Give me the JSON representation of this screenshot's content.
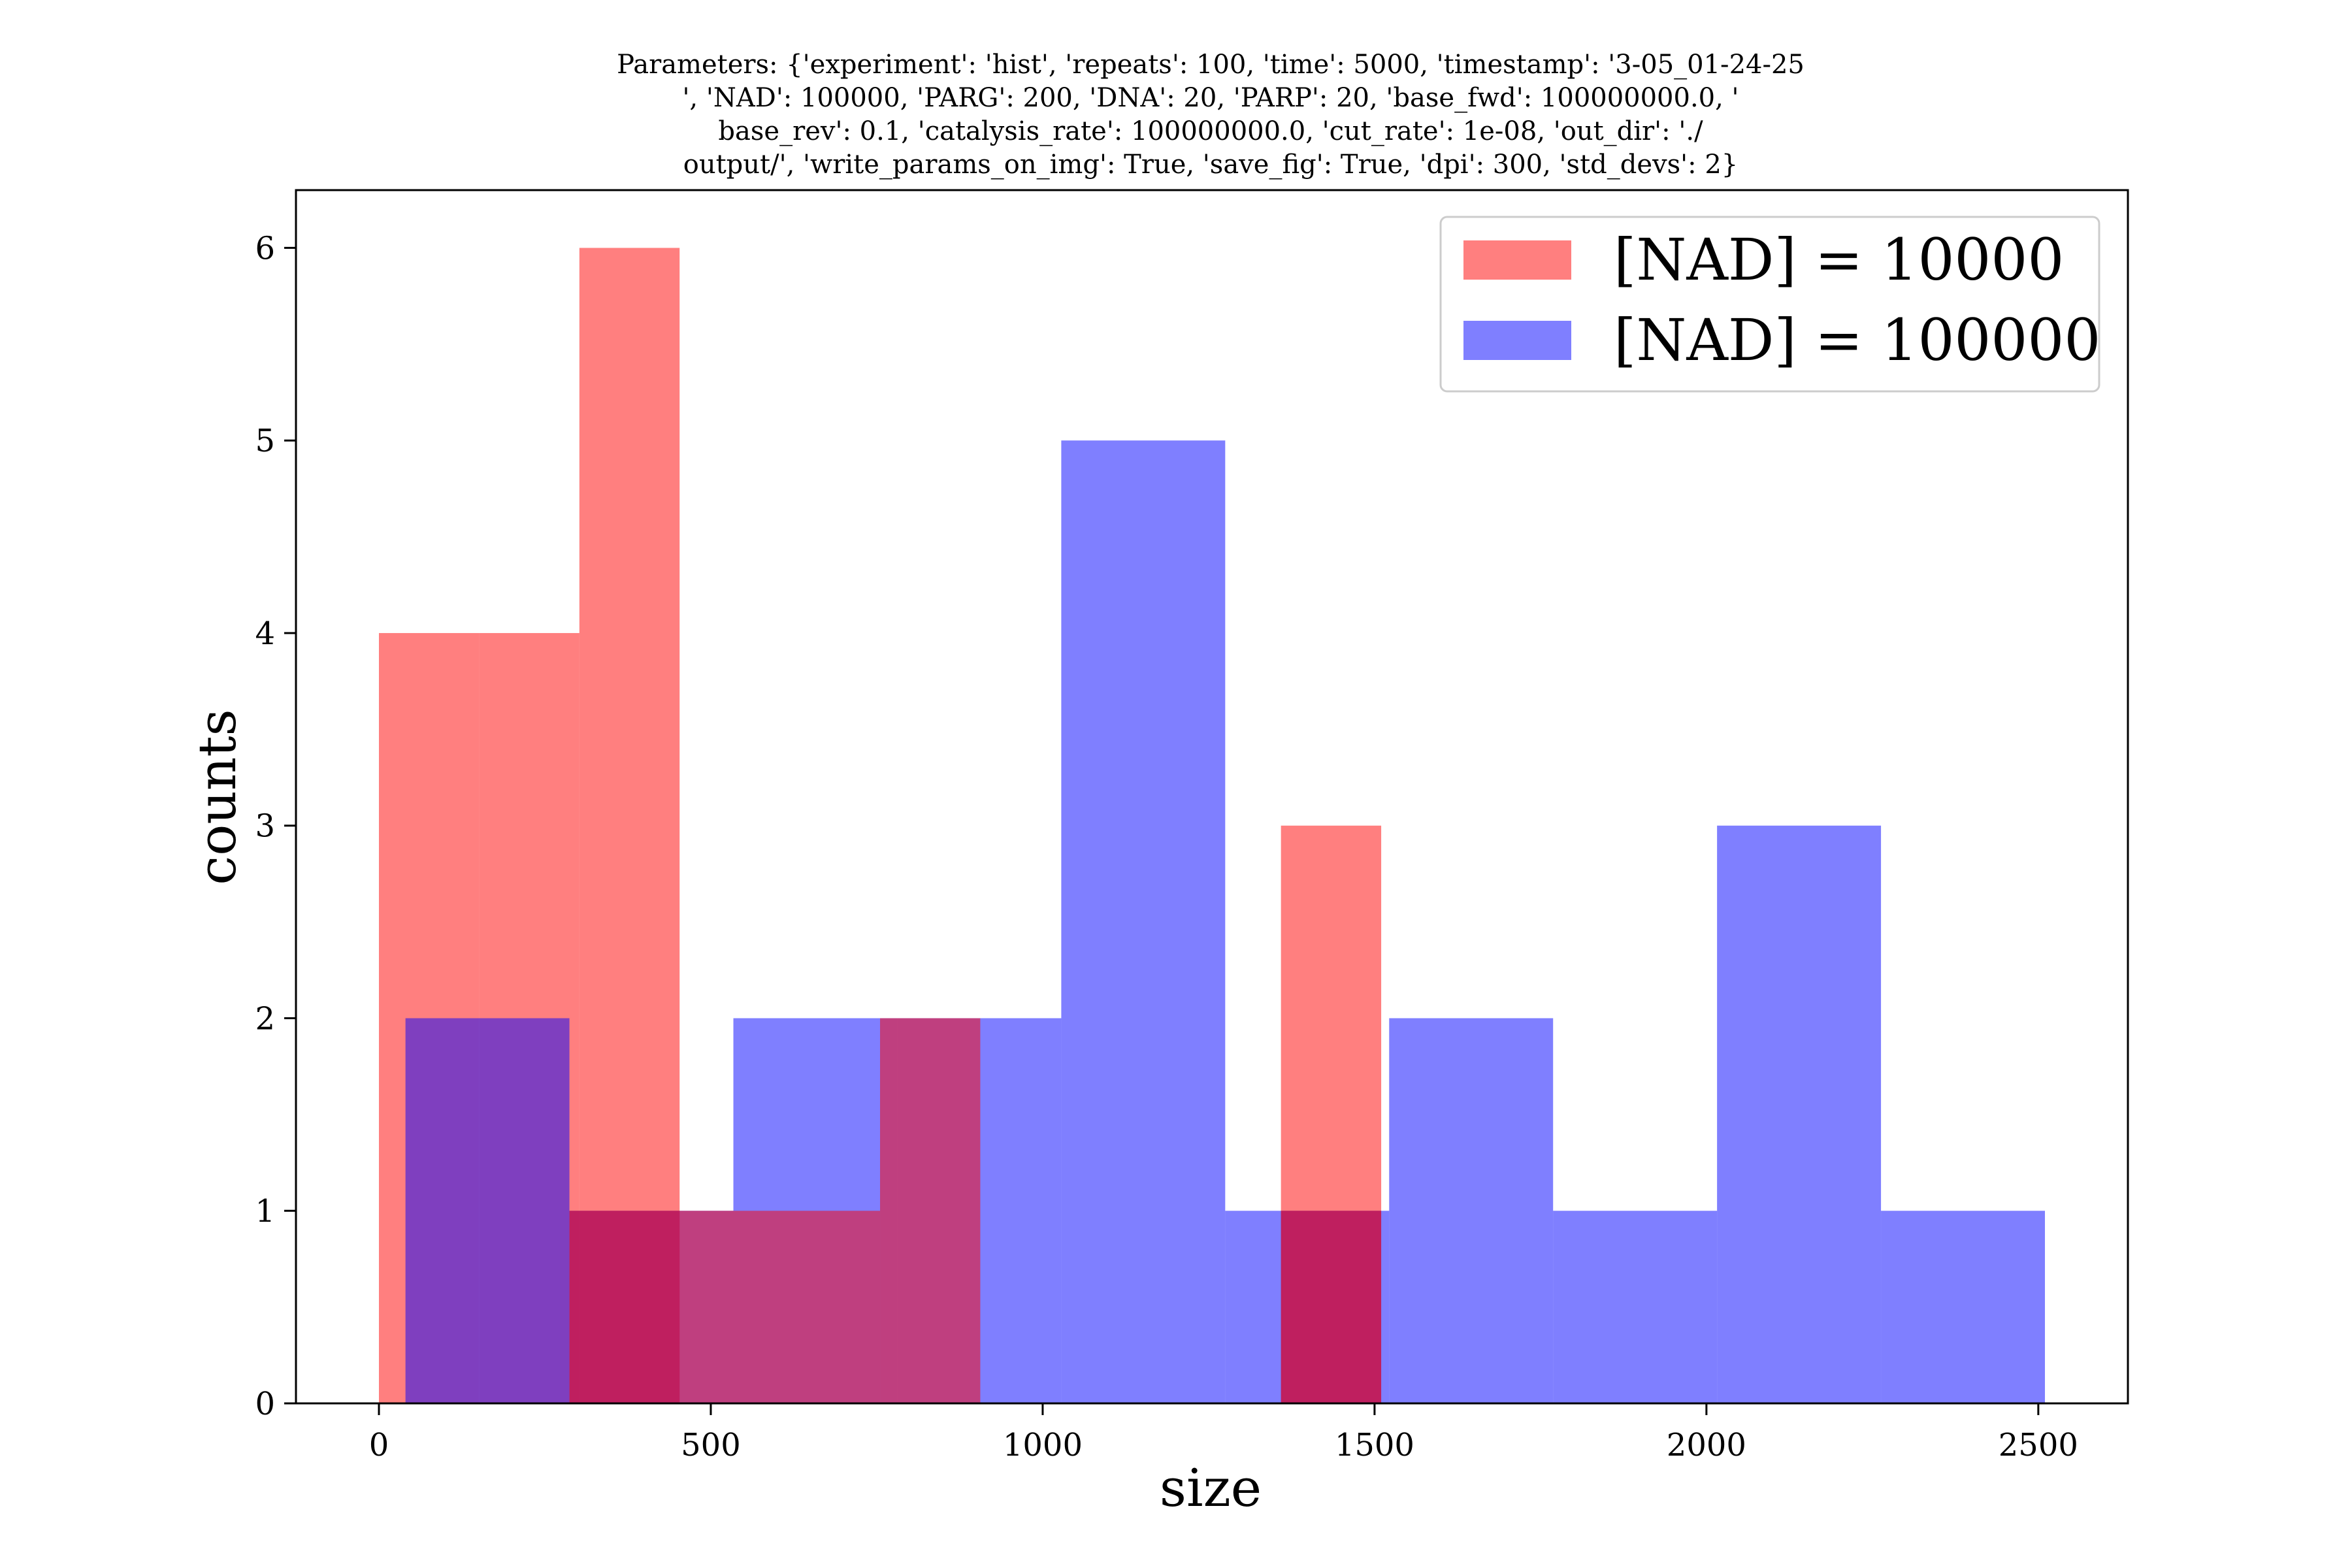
{
  "title_lines": [
    "Parameters: {'experiment': 'hist', 'repeats': 100, 'time': 5000, 'timestamp': '3-05_01-24-25",
    "', 'NAD': 100000, 'PARG': 200, 'DNA': 20, 'PARP': 20, 'base_fwd': 100000000.0, '",
    "base_rev': 0.1, 'catalysis_rate': 100000000.0, 'cut_rate': 1e-08, 'out_dir': './",
    "output/', 'write_params_on_img': True, 'save_fig': True, 'dpi': 300, 'std_devs': 2}"
  ],
  "chart_data": {
    "type": "bar",
    "subtype": "histogram",
    "xlabel": "size",
    "ylabel": "counts",
    "xlim": [
      -125,
      2635
    ],
    "ylim": [
      0,
      6.3
    ],
    "xticks": [
      0,
      500,
      1000,
      1500,
      2000,
      2500
    ],
    "yticks": [
      0,
      1,
      2,
      3,
      4,
      5,
      6
    ],
    "grid": false,
    "legend_position": "top-right",
    "series": [
      {
        "name": "[NAD] = 10000",
        "color": "#ff0000",
        "alpha": 0.5,
        "bin_edges": [
          0,
          151,
          302,
          453,
          604,
          755,
          906,
          1057,
          1208,
          1359,
          1510
        ],
        "counts": [
          4,
          4,
          6,
          0,
          0,
          0,
          0,
          0,
          0,
          3
        ]
      },
      {
        "name": "[NAD] = 100000",
        "color": "#0000ff",
        "alpha": 0.5,
        "bin_edges": [
          40,
          287,
          534,
          781,
          1028,
          1275,
          1522,
          1769,
          2016,
          2263,
          2510
        ],
        "counts": [
          2,
          1,
          2,
          2,
          5,
          1,
          2,
          1,
          3,
          1
        ]
      },
      {
        "name": "",
        "color": "#ff0000",
        "alpha": 0.5,
        "bin_edges": [
          40,
          287,
          534,
          755,
          906,
          1359,
          1510
        ],
        "counts": [
          0,
          1,
          1,
          2,
          0,
          1
        ],
        "note_overlap_only": true
      }
    ]
  }
}
